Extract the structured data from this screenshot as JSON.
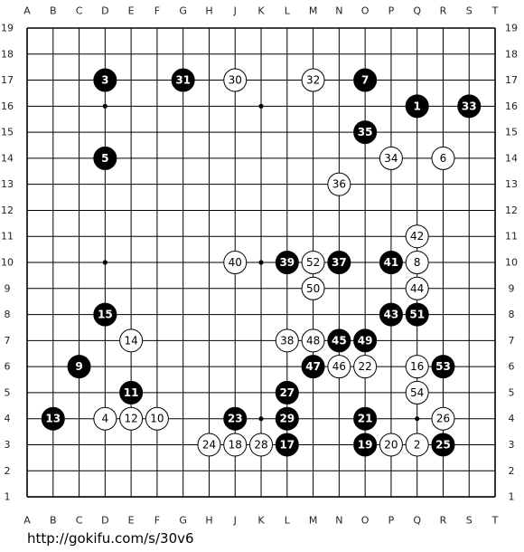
{
  "board": {
    "columns": [
      "A",
      "B",
      "C",
      "D",
      "E",
      "F",
      "G",
      "H",
      "J",
      "K",
      "L",
      "M",
      "N",
      "O",
      "P",
      "Q",
      "R",
      "S",
      "T"
    ],
    "rows": [
      19,
      18,
      17,
      16,
      15,
      14,
      13,
      12,
      11,
      10,
      9,
      8,
      7,
      6,
      5,
      4,
      3,
      2,
      1
    ],
    "stones": [
      {
        "label": 1,
        "color": "black",
        "point": "Q16"
      },
      {
        "label": 2,
        "color": "white",
        "point": "Q3"
      },
      {
        "label": 3,
        "color": "black",
        "point": "D17"
      },
      {
        "label": 4,
        "color": "white",
        "point": "D4"
      },
      {
        "label": 5,
        "color": "black",
        "point": "D14"
      },
      {
        "label": 6,
        "color": "white",
        "point": "R14"
      },
      {
        "label": 7,
        "color": "black",
        "point": "O17"
      },
      {
        "label": 8,
        "color": "white",
        "point": "Q10"
      },
      {
        "label": 9,
        "color": "black",
        "point": "C6"
      },
      {
        "label": 10,
        "color": "white",
        "point": "F4"
      },
      {
        "label": 11,
        "color": "black",
        "point": "E5"
      },
      {
        "label": 12,
        "color": "white",
        "point": "E4"
      },
      {
        "label": 13,
        "color": "black",
        "point": "B4"
      },
      {
        "label": 14,
        "color": "white",
        "point": "E7"
      },
      {
        "label": 15,
        "color": "black",
        "point": "D8"
      },
      {
        "label": 16,
        "color": "white",
        "point": "Q6"
      },
      {
        "label": 17,
        "color": "black",
        "point": "L3"
      },
      {
        "label": 18,
        "color": "white",
        "point": "J3"
      },
      {
        "label": 19,
        "color": "black",
        "point": "O3"
      },
      {
        "label": 20,
        "color": "white",
        "point": "P3"
      },
      {
        "label": 21,
        "color": "black",
        "point": "O4"
      },
      {
        "label": 22,
        "color": "white",
        "point": "O6"
      },
      {
        "label": 23,
        "color": "black",
        "point": "J4"
      },
      {
        "label": 24,
        "color": "white",
        "point": "H3"
      },
      {
        "label": 25,
        "color": "black",
        "point": "R3"
      },
      {
        "label": 26,
        "color": "white",
        "point": "R4"
      },
      {
        "label": 27,
        "color": "black",
        "point": "L5"
      },
      {
        "label": 28,
        "color": "white",
        "point": "K3"
      },
      {
        "label": 29,
        "color": "black",
        "point": "L4"
      },
      {
        "label": 30,
        "color": "white",
        "point": "J17"
      },
      {
        "label": 31,
        "color": "black",
        "point": "G17"
      },
      {
        "label": 32,
        "color": "white",
        "point": "M17"
      },
      {
        "label": 33,
        "color": "black",
        "point": "S16"
      },
      {
        "label": 34,
        "color": "white",
        "point": "P14"
      },
      {
        "label": 35,
        "color": "black",
        "point": "O15"
      },
      {
        "label": 36,
        "color": "white",
        "point": "N13"
      },
      {
        "label": 37,
        "color": "black",
        "point": "N10"
      },
      {
        "label": 38,
        "color": "white",
        "point": "L7"
      },
      {
        "label": 39,
        "color": "black",
        "point": "L10"
      },
      {
        "label": 40,
        "color": "white",
        "point": "J10"
      },
      {
        "label": 41,
        "color": "black",
        "point": "P10"
      },
      {
        "label": 42,
        "color": "white",
        "point": "Q11"
      },
      {
        "label": 43,
        "color": "black",
        "point": "P8"
      },
      {
        "label": 44,
        "color": "white",
        "point": "Q9"
      },
      {
        "label": 45,
        "color": "black",
        "point": "N7"
      },
      {
        "label": 46,
        "color": "white",
        "point": "N6"
      },
      {
        "label": 47,
        "color": "black",
        "point": "M6"
      },
      {
        "label": 48,
        "color": "white",
        "point": "M7"
      },
      {
        "label": 49,
        "color": "black",
        "point": "O7"
      },
      {
        "label": 50,
        "color": "white",
        "point": "M9"
      },
      {
        "label": 51,
        "color": "black",
        "point": "Q8"
      },
      {
        "label": 52,
        "color": "white",
        "point": "M10"
      },
      {
        "label": 53,
        "color": "black",
        "point": "R6"
      },
      {
        "label": 54,
        "color": "white",
        "point": "Q5"
      }
    ]
  },
  "footer": {
    "url": "http://gokifu.com/s/30v6"
  }
}
